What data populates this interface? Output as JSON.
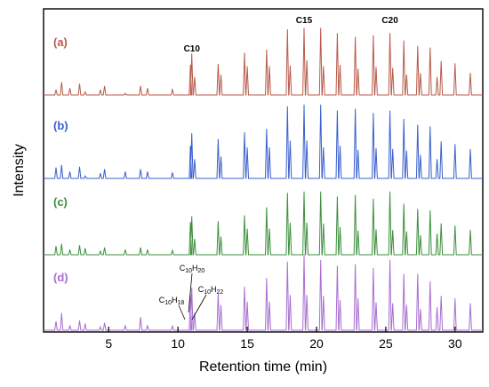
{
  "chart_data": {
    "type": "line",
    "xlabel": "Retention time (min)",
    "ylabel": "Intensity",
    "xlim": [
      0.3,
      32
    ],
    "xticks": [
      5,
      10,
      15,
      20,
      25,
      30
    ],
    "grid": false,
    "peak_labels": [
      {
        "text": "C10",
        "x": 11.0
      },
      {
        "text": "C15",
        "x": 19.1
      },
      {
        "text": "C20",
        "x": 25.3
      }
    ],
    "annotations": [
      {
        "base": "C",
        "sub1": "10",
        "mid": "H",
        "sub2": "20",
        "x": 11.0,
        "series": "(d)"
      },
      {
        "base": "C",
        "sub1": "10",
        "mid": "H",
        "sub2": "18",
        "x": 10.85,
        "series": "(d)"
      },
      {
        "base": "C",
        "sub1": "10",
        "mid": "H",
        "sub2": "22",
        "x": 11.15,
        "series": "(d)"
      }
    ],
    "series": [
      {
        "name": "(a)",
        "color": "#b85a4a",
        "scale": 1.0,
        "offset": 0
      },
      {
        "name": "(b)",
        "color": "#3a5fcd",
        "scale": 1.05,
        "offset": 0
      },
      {
        "name": "(c)",
        "color": "#3b8f3b",
        "scale": 1.0,
        "offset": 0
      },
      {
        "name": "(d)",
        "color": "#a86ed0",
        "scale": 1.0,
        "offset": 0
      }
    ],
    "peaks": [
      {
        "x": 1.2,
        "h": 0.1
      },
      {
        "x": 1.6,
        "h": 0.18
      },
      {
        "x": 2.2,
        "h": 0.08
      },
      {
        "x": 2.9,
        "h": 0.12
      },
      {
        "x": 3.3,
        "h": 0.06
      },
      {
        "x": 4.4,
        "h": 0.07
      },
      {
        "x": 4.7,
        "h": 0.1
      },
      {
        "x": 6.2,
        "h": 0.05
      },
      {
        "x": 7.3,
        "h": 0.13
      },
      {
        "x": 7.8,
        "h": 0.08
      },
      {
        "x": 9.6,
        "h": 0.05
      },
      {
        "x": 10.9,
        "h": 0.42
      },
      {
        "x": 11.0,
        "h": 0.55
      },
      {
        "x": 11.2,
        "h": 0.22
      },
      {
        "x": 12.9,
        "h": 0.44
      },
      {
        "x": 13.1,
        "h": 0.28
      },
      {
        "x": 14.8,
        "h": 0.55
      },
      {
        "x": 15.0,
        "h": 0.35
      },
      {
        "x": 16.4,
        "h": 0.62
      },
      {
        "x": 16.6,
        "h": 0.38
      },
      {
        "x": 17.9,
        "h": 0.85
      },
      {
        "x": 18.1,
        "h": 0.42
      },
      {
        "x": 19.1,
        "h": 0.9
      },
      {
        "x": 19.3,
        "h": 0.45
      },
      {
        "x": 20.3,
        "h": 0.86
      },
      {
        "x": 20.5,
        "h": 0.4
      },
      {
        "x": 21.5,
        "h": 0.82
      },
      {
        "x": 21.7,
        "h": 0.38
      },
      {
        "x": 22.8,
        "h": 0.8
      },
      {
        "x": 23.0,
        "h": 0.36
      },
      {
        "x": 24.1,
        "h": 0.78
      },
      {
        "x": 24.3,
        "h": 0.34
      },
      {
        "x": 25.3,
        "h": 0.84
      },
      {
        "x": 25.5,
        "h": 0.36
      },
      {
        "x": 26.3,
        "h": 0.7
      },
      {
        "x": 26.5,
        "h": 0.3
      },
      {
        "x": 27.3,
        "h": 0.66
      },
      {
        "x": 27.5,
        "h": 0.28
      },
      {
        "x": 28.2,
        "h": 0.6
      },
      {
        "x": 28.7,
        "h": 0.26
      },
      {
        "x": 29.0,
        "h": 0.45
      },
      {
        "x": 30.0,
        "h": 0.4
      },
      {
        "x": 31.1,
        "h": 0.32
      }
    ]
  }
}
